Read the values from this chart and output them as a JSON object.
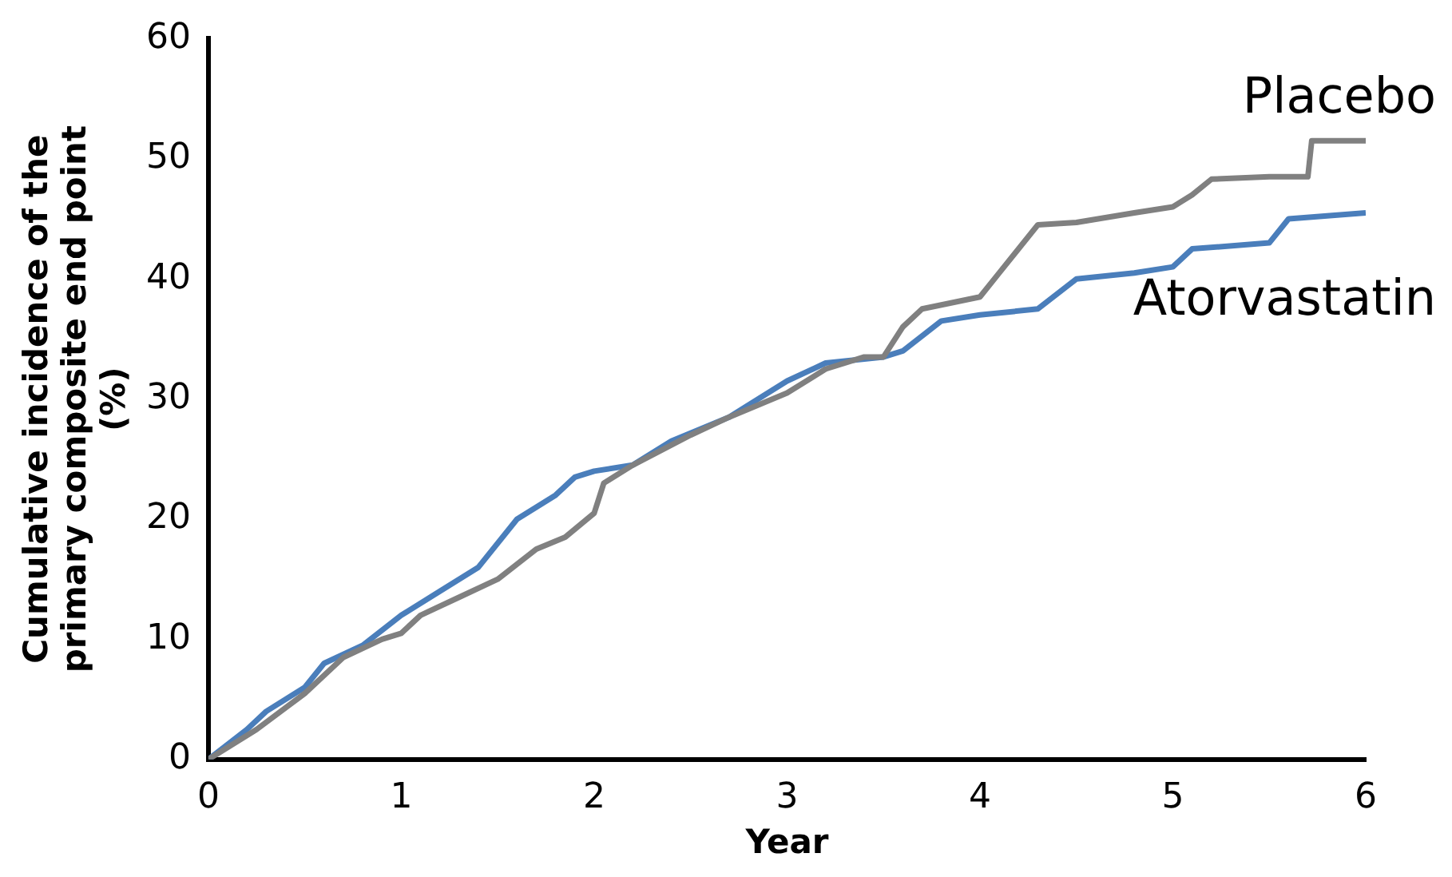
{
  "chart_data": {
    "type": "line",
    "xlabel": "Year",
    "ylabel": "Cumulative incidence of the primary composite end point (%)",
    "xlim": [
      0,
      6
    ],
    "xticks": [
      0,
      1,
      2,
      3,
      4,
      5,
      6
    ],
    "ylim": [
      0,
      60
    ],
    "yticks": [
      0,
      10,
      20,
      30,
      40,
      50,
      60
    ],
    "grid": false,
    "legend": false,
    "marker": "none",
    "line_style": "solid",
    "series": [
      {
        "name": "Placebo",
        "color": "#808080",
        "x": [
          0,
          0.25,
          0.5,
          0.7,
          0.9,
          1.0,
          1.1,
          1.3,
          1.5,
          1.7,
          1.85,
          2.0,
          2.05,
          2.2,
          2.5,
          2.7,
          3.0,
          3.2,
          3.4,
          3.5,
          3.6,
          3.7,
          4.0,
          4.1,
          4.3,
          4.5,
          4.8,
          5.0,
          5.1,
          5.2,
          5.5,
          5.7,
          5.72,
          6.0
        ],
        "values": [
          0,
          2.5,
          5.5,
          8.5,
          10,
          10.5,
          12,
          13.5,
          15,
          17.5,
          18.5,
          20.5,
          23,
          24.5,
          27,
          28.5,
          30.5,
          32.5,
          33.5,
          33.5,
          36,
          37.5,
          38.5,
          40.5,
          44.5,
          44.7,
          45.5,
          46,
          47,
          48.3,
          48.5,
          48.5,
          51.5,
          51.5
        ]
      },
      {
        "name": "Atorvastatin",
        "color": "#4a7ebb",
        "x": [
          0,
          0.2,
          0.3,
          0.5,
          0.6,
          0.8,
          1.0,
          1.2,
          1.4,
          1.6,
          1.8,
          1.9,
          2.0,
          2.2,
          2.4,
          2.7,
          3.0,
          3.2,
          3.5,
          3.6,
          3.8,
          4.0,
          4.3,
          4.5,
          4.8,
          5.0,
          5.1,
          5.5,
          5.6,
          6.0
        ],
        "values": [
          0,
          2.5,
          4,
          6,
          8,
          9.5,
          12,
          14,
          16,
          20,
          22,
          23.5,
          24,
          24.5,
          26.5,
          28.5,
          31.5,
          33,
          33.5,
          34,
          36.5,
          37,
          37.5,
          40,
          40.5,
          41,
          42.5,
          43,
          45,
          45.5
        ]
      }
    ]
  }
}
